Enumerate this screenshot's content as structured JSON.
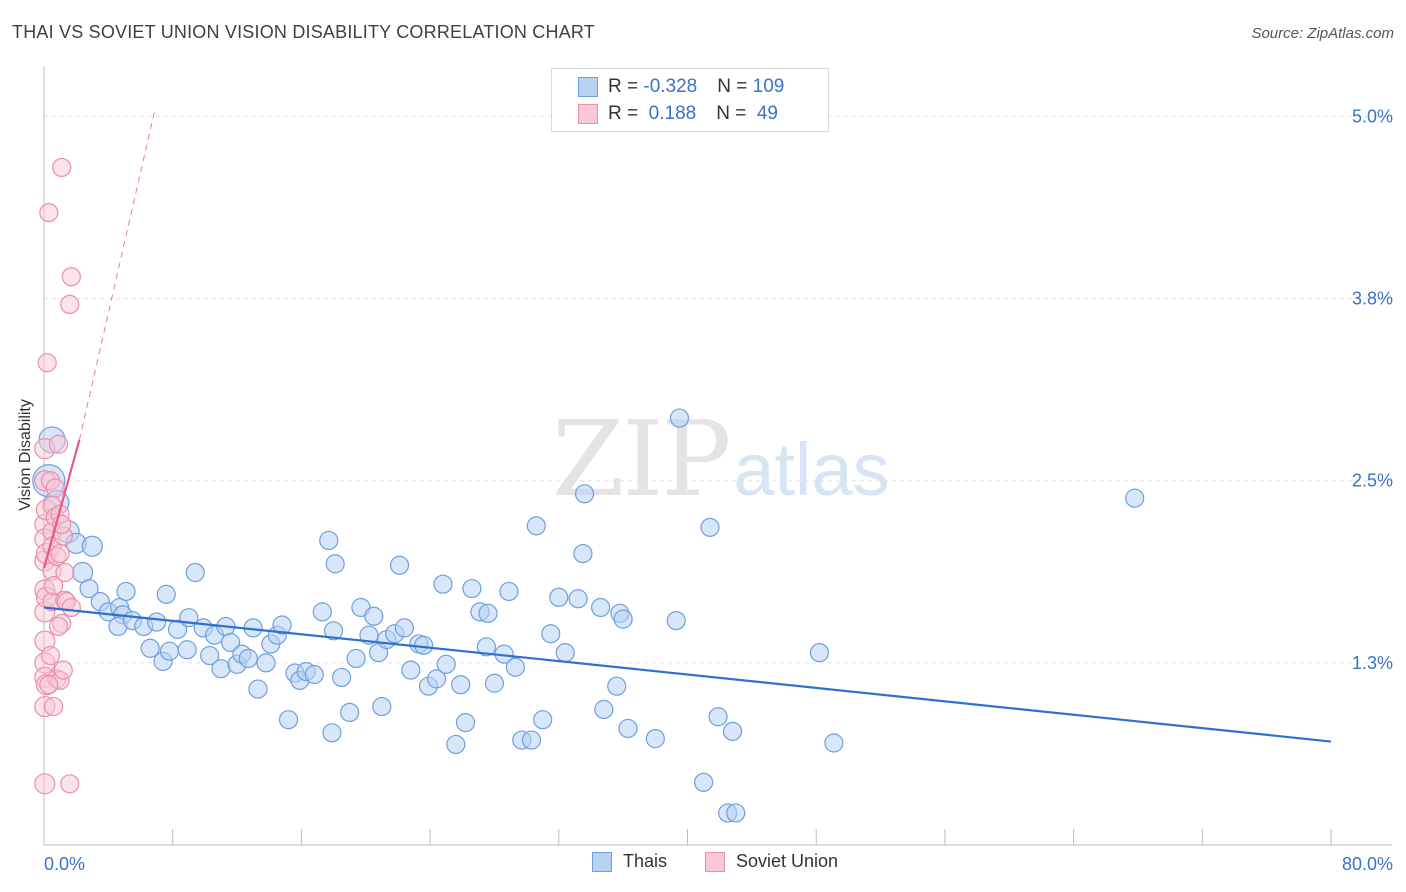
{
  "title": "THAI VS SOVIET UNION VISION DISABILITY CORRELATION CHART",
  "source": "Source: ZipAtlas.com",
  "watermark": {
    "zip": "ZIP",
    "atlas": "atlas"
  },
  "colors": {
    "thais_fill": "#b8d2f4",
    "thais_stroke": "#6f9fdc",
    "thais_line": "#2f6fd0",
    "soviet_fill": "#f8c8d6",
    "soviet_stroke": "#ea8fab",
    "soviet_line": "#e8588a",
    "grid": "#e2e2e2",
    "tick_text": "#3a72c8"
  },
  "legend": {
    "rows": [
      {
        "r_label": "R = ",
        "r_value": "-0.328",
        "n_label": "N = ",
        "n_value": "109"
      },
      {
        "r_label": "R = ",
        "r_value": " 0.188",
        "n_label": "N = ",
        "n_value": " 49"
      }
    ],
    "series": [
      "Thais",
      "Soviet Union"
    ]
  },
  "chart_data": {
    "type": "scatter",
    "title": "THAI VS SOVIET UNION VISION DISABILITY CORRELATION CHART",
    "xlabel": "",
    "ylabel": "Vision Disability",
    "xlim": [
      0,
      80
    ],
    "ylim": [
      0,
      5.25
    ],
    "x_tick_labels": [
      "0.0%",
      "80.0%"
    ],
    "y_ticks": [
      1.25,
      2.5,
      3.75,
      5.0
    ],
    "y_tick_labels": [
      "1.3%",
      "2.5%",
      "3.8%",
      "5.0%"
    ],
    "grid": true,
    "series": [
      {
        "name": "Thais",
        "r": -0.328,
        "n": 109,
        "trend": {
          "x": [
            0,
            80
          ],
          "y": [
            1.63,
            0.71
          ]
        },
        "points": [
          [
            0.3,
            2.5,
            16
          ],
          [
            0.5,
            2.78,
            13
          ],
          [
            0.8,
            2.35,
            12
          ],
          [
            1.5,
            2.15,
            11
          ],
          [
            2.0,
            2.07,
            10
          ],
          [
            3.0,
            2.05,
            10
          ],
          [
            2.4,
            1.87,
            10
          ],
          [
            2.8,
            1.76,
            9
          ],
          [
            3.5,
            1.67,
            9
          ],
          [
            4.0,
            1.6,
            9
          ],
          [
            4.7,
            1.63,
            9
          ],
          [
            4.9,
            1.58,
            9
          ],
          [
            4.6,
            1.5,
            9
          ],
          [
            5.5,
            1.54,
            9
          ],
          [
            5.1,
            1.74,
            9
          ],
          [
            6.2,
            1.5,
            9
          ],
          [
            6.6,
            1.35,
            9
          ],
          [
            7.0,
            1.53,
            9
          ],
          [
            7.4,
            1.26,
            9
          ],
          [
            7.8,
            1.33,
            9
          ],
          [
            7.6,
            1.72,
            9
          ],
          [
            8.3,
            1.48,
            9
          ],
          [
            8.9,
            1.34,
            9
          ],
          [
            9.0,
            1.56,
            9
          ],
          [
            9.4,
            1.87,
            9
          ],
          [
            9.9,
            1.49,
            9
          ],
          [
            10.3,
            1.3,
            9
          ],
          [
            10.6,
            1.44,
            9
          ],
          [
            11.0,
            1.21,
            9
          ],
          [
            11.3,
            1.5,
            9
          ],
          [
            11.6,
            1.39,
            9
          ],
          [
            12.0,
            1.24,
            9
          ],
          [
            12.3,
            1.31,
            9
          ],
          [
            12.7,
            1.28,
            9
          ],
          [
            13.0,
            1.49,
            9
          ],
          [
            13.3,
            1.07,
            9
          ],
          [
            13.8,
            1.25,
            9
          ],
          [
            14.1,
            1.38,
            9
          ],
          [
            14.5,
            1.44,
            9
          ],
          [
            14.8,
            1.51,
            9
          ],
          [
            15.2,
            0.86,
            9
          ],
          [
            15.6,
            1.18,
            9
          ],
          [
            15.9,
            1.13,
            9
          ],
          [
            16.3,
            1.19,
            9
          ],
          [
            16.8,
            1.17,
            9
          ],
          [
            17.3,
            1.6,
            9
          ],
          [
            17.7,
            2.09,
            9
          ],
          [
            18.1,
            1.93,
            9
          ],
          [
            17.9,
            0.77,
            9
          ],
          [
            18.5,
            1.15,
            9
          ],
          [
            18.0,
            1.47,
            9
          ],
          [
            19.0,
            0.91,
            9
          ],
          [
            19.4,
            1.28,
            9
          ],
          [
            19.7,
            1.63,
            9
          ],
          [
            20.2,
            1.44,
            9
          ],
          [
            20.5,
            1.57,
            9
          ],
          [
            20.8,
            1.32,
            9
          ],
          [
            21.3,
            1.41,
            9
          ],
          [
            21.0,
            0.95,
            9
          ],
          [
            21.8,
            1.45,
            9
          ],
          [
            22.1,
            1.92,
            9
          ],
          [
            22.4,
            1.49,
            9
          ],
          [
            22.8,
            1.2,
            9
          ],
          [
            23.3,
            1.38,
            9
          ],
          [
            23.6,
            1.37,
            9
          ],
          [
            23.9,
            1.09,
            9
          ],
          [
            24.4,
            1.14,
            9
          ],
          [
            24.8,
            1.79,
            9
          ],
          [
            25.0,
            1.24,
            9
          ],
          [
            25.6,
            0.69,
            9
          ],
          [
            25.9,
            1.1,
            9
          ],
          [
            26.2,
            0.84,
            9
          ],
          [
            26.6,
            1.76,
            9
          ],
          [
            27.1,
            1.6,
            9
          ],
          [
            27.6,
            1.59,
            9
          ],
          [
            27.5,
            1.36,
            9
          ],
          [
            28.0,
            1.11,
            9
          ],
          [
            28.6,
            1.31,
            9
          ],
          [
            28.9,
            1.74,
            9
          ],
          [
            29.3,
            1.22,
            9
          ],
          [
            29.7,
            0.72,
            9
          ],
          [
            30.3,
            0.72,
            9
          ],
          [
            30.6,
            2.19,
            9
          ],
          [
            31.0,
            0.86,
            9
          ],
          [
            31.5,
            1.45,
            9
          ],
          [
            32.0,
            1.7,
            9
          ],
          [
            32.4,
            1.32,
            9
          ],
          [
            33.2,
            1.69,
            9
          ],
          [
            33.5,
            2.0,
            9
          ],
          [
            33.6,
            2.41,
            9
          ],
          [
            34.6,
            1.63,
            9
          ],
          [
            34.8,
            0.93,
            9
          ],
          [
            35.6,
            1.09,
            9
          ],
          [
            35.8,
            1.59,
            9
          ],
          [
            36.0,
            1.55,
            9
          ],
          [
            36.3,
            0.8,
            9
          ],
          [
            38.0,
            0.73,
            9
          ],
          [
            39.3,
            1.54,
            9
          ],
          [
            39.5,
            2.93,
            9
          ],
          [
            41.0,
            0.43,
            9
          ],
          [
            41.4,
            2.18,
            9
          ],
          [
            41.9,
            0.88,
            9
          ],
          [
            42.5,
            0.22,
            9
          ],
          [
            43.0,
            0.22,
            9
          ],
          [
            42.8,
            0.78,
            9
          ],
          [
            48.2,
            1.32,
            9
          ],
          [
            49.1,
            0.7,
            9
          ],
          [
            67.8,
            2.38,
            9
          ]
        ]
      },
      {
        "name": "Soviet Union",
        "r": 0.188,
        "n": 49,
        "trend": {
          "x": [
            0,
            2.2
          ],
          "y": [
            1.9,
            2.78
          ]
        },
        "trend_extended": {
          "x": [
            2.2,
            6.9
          ],
          "y": [
            2.78,
            5.05
          ]
        },
        "points": [
          [
            0.05,
            2.72,
            10
          ],
          [
            0.05,
            2.5,
            10
          ],
          [
            0.05,
            2.2,
            10
          ],
          [
            0.05,
            2.1,
            10
          ],
          [
            0.05,
            1.95,
            10
          ],
          [
            0.05,
            1.75,
            10
          ],
          [
            0.05,
            1.6,
            10
          ],
          [
            0.05,
            1.4,
            10
          ],
          [
            0.05,
            1.25,
            10
          ],
          [
            0.05,
            1.15,
            10
          ],
          [
            0.05,
            0.95,
            10
          ],
          [
            0.05,
            0.42,
            10
          ],
          [
            0.15,
            2.3,
            10
          ],
          [
            0.15,
            2.0,
            10
          ],
          [
            0.15,
            1.7,
            10
          ],
          [
            0.15,
            1.1,
            10
          ],
          [
            0.2,
            3.31,
            9
          ],
          [
            0.3,
            4.34,
            9
          ],
          [
            0.4,
            2.5,
            9
          ],
          [
            0.5,
            2.33,
            9
          ],
          [
            0.5,
            2.15,
            9
          ],
          [
            0.5,
            2.05,
            9
          ],
          [
            0.5,
            1.88,
            9
          ],
          [
            0.5,
            1.67,
            9
          ],
          [
            0.6,
            1.78,
            9
          ],
          [
            0.7,
            2.25,
            9
          ],
          [
            0.8,
            1.98,
            9
          ],
          [
            0.8,
            1.14,
            9
          ],
          [
            0.9,
            2.75,
            9
          ],
          [
            1.0,
            2.27,
            9
          ],
          [
            1.0,
            2.0,
            9
          ],
          [
            1.0,
            1.13,
            9
          ],
          [
            1.1,
            1.52,
            9
          ],
          [
            1.1,
            4.65,
            9
          ],
          [
            1.2,
            2.12,
            9
          ],
          [
            1.3,
            1.87,
            9
          ],
          [
            1.3,
            1.68,
            9
          ],
          [
            1.4,
            1.67,
            9
          ],
          [
            1.6,
            3.71,
            9
          ],
          [
            1.6,
            0.42,
            9
          ],
          [
            1.7,
            1.63,
            9
          ],
          [
            1.7,
            3.9,
            9
          ],
          [
            0.7,
            2.45,
            9
          ],
          [
            0.4,
            1.3,
            9
          ],
          [
            0.9,
            1.5,
            9
          ],
          [
            1.1,
            2.2,
            9
          ],
          [
            0.3,
            1.1,
            9
          ],
          [
            0.6,
            0.95,
            9
          ],
          [
            1.2,
            1.2,
            9
          ]
        ]
      }
    ]
  }
}
